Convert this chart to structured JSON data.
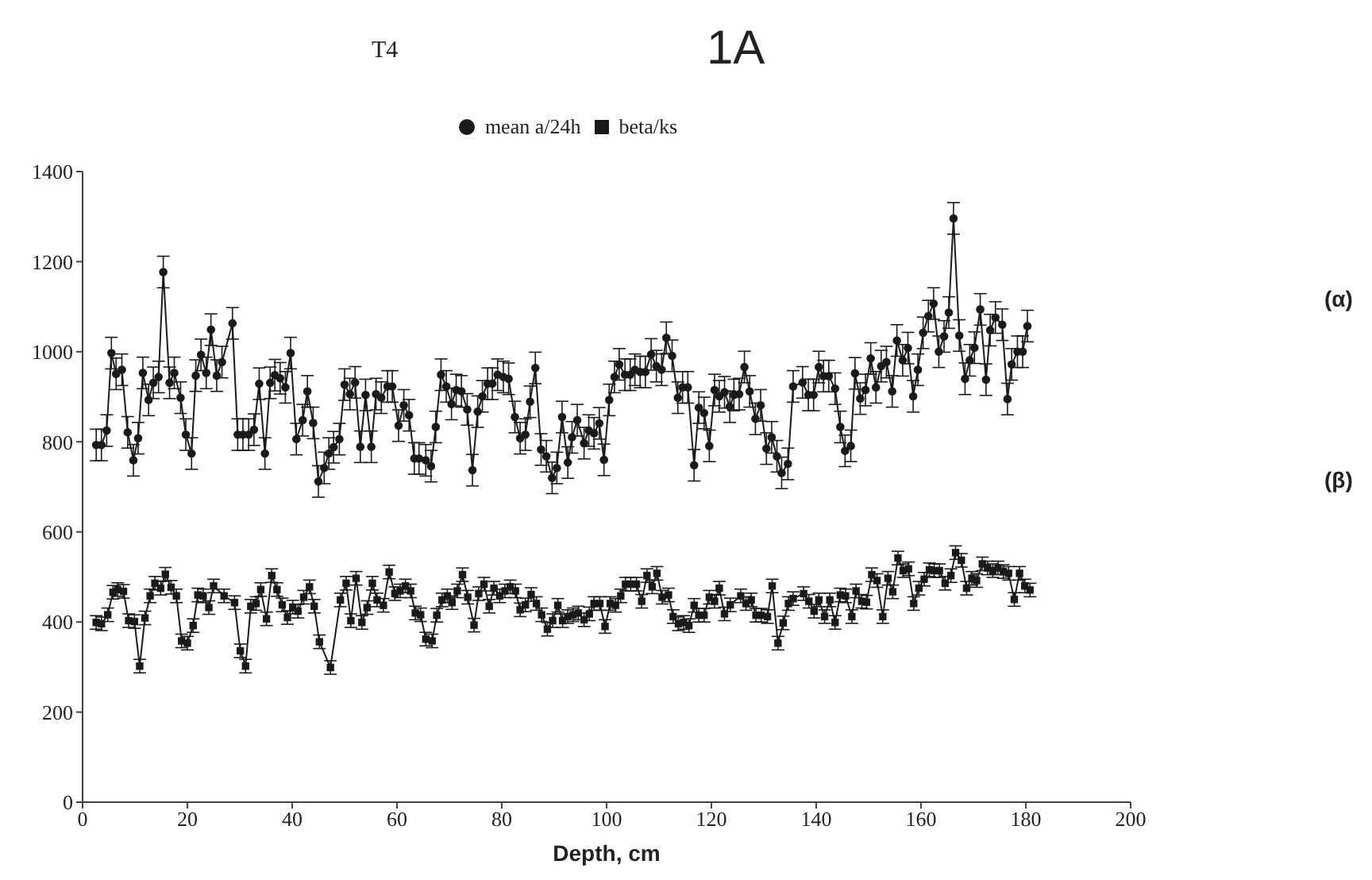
{
  "chart_data": {
    "type": "line",
    "title": "T4",
    "xlabel": "Depth, cm",
    "annotations": [
      "1A",
      "(α)",
      "(β)"
    ],
    "xlim": [
      0,
      200
    ],
    "xticks": [
      0,
      20,
      40,
      60,
      80,
      100,
      120,
      140,
      160,
      180,
      200
    ],
    "ylim": [
      0,
      1400
    ],
    "yticks": [
      0,
      200,
      400,
      600,
      800,
      1000,
      1200,
      1400
    ],
    "grid": false,
    "legend": "top",
    "line_style": "solid",
    "series": [
      {
        "name": "mean a/24h",
        "color": "#1a1a1a",
        "marker": "circle",
        "x": [
          2.6,
          3.6,
          4.6,
          5.5,
          6.4,
          7.5,
          8.6,
          9.7,
          10.6,
          11.5,
          12.6,
          13.5,
          14.5,
          15.4,
          16.6,
          17.5,
          18.7,
          19.7,
          20.8,
          21.6,
          22.6,
          23.6,
          24.5,
          25.6,
          26.6,
          28.6,
          29.6,
          30.6,
          31.7,
          32.7,
          33.7,
          34.8,
          35.8,
          36.7,
          37.7,
          38.7,
          39.7,
          40.8,
          42.0,
          42.9,
          44.0,
          45.0,
          46.1,
          47.0,
          47.9,
          49.0,
          50.0,
          51.0,
          52.0,
          53.0,
          54.0,
          55.1,
          56.0,
          57.0,
          58.2,
          59.1,
          60.3,
          61.3,
          62.3,
          63.3,
          64.2,
          65.5,
          66.5,
          67.4,
          68.4,
          69.4,
          70.4,
          71.3,
          72.3,
          73.4,
          74.4,
          75.4,
          76.3,
          77.3,
          78.2,
          79.2,
          80.3,
          81.3,
          82.5,
          83.5,
          84.5,
          85.4,
          86.4,
          87.5,
          88.5,
          89.6,
          90.5,
          91.5,
          92.6,
          93.4,
          94.4,
          95.7,
          96.6,
          97.6,
          98.6,
          99.5,
          100.5,
          101.5,
          102.4,
          103.5,
          104.5,
          105.4,
          106.4,
          107.4,
          108.5,
          109.5,
          110.5,
          111.4,
          112.5,
          113.6,
          114.5,
          115.5,
          116.7,
          117.6,
          118.6,
          119.6,
          120.6,
          121.5,
          122.5,
          123.5,
          124.3,
          125.3,
          126.3,
          127.3,
          128.4,
          129.4,
          130.5,
          131.5,
          132.5,
          133.4,
          134.6,
          135.6,
          137.4,
          138.5,
          139.5,
          140.5,
          141.4,
          142.4,
          143.6,
          144.6,
          145.5,
          146.6,
          147.4,
          148.4,
          149.4,
          150.4,
          151.4,
          152.4,
          153.4,
          154.5,
          155.4,
          156.5,
          157.5,
          158.5,
          159.4,
          160.4,
          161.4,
          162.4,
          163.4,
          164.4,
          165.3,
          166.2,
          167.3,
          168.4,
          169.3,
          170.2,
          171.3,
          172.4,
          173.2,
          174.2,
          175.5,
          176.5,
          177.3,
          178.4,
          179.4,
          180.3
        ],
        "values": [
          793,
          793,
          825,
          997,
          951,
          960,
          821,
          759,
          808,
          953,
          893,
          931,
          944,
          1177,
          931,
          953,
          898,
          816,
          774,
          947,
          993,
          953,
          1049,
          947,
          977,
          1063,
          816,
          816,
          816,
          827,
          929,
          774,
          931,
          948,
          941,
          921,
          997,
          806,
          848,
          912,
          842,
          712,
          742,
          774,
          788,
          806,
          927,
          906,
          932,
          789,
          904,
          789,
          906,
          898,
          923,
          923,
          836,
          881,
          859,
          763,
          763,
          759,
          746,
          833,
          949,
          923,
          884,
          915,
          912,
          872,
          737,
          867,
          901,
          929,
          929,
          949,
          944,
          940,
          855,
          808,
          816,
          889,
          964,
          783,
          768,
          720,
          742,
          855,
          754,
          810,
          848,
          797,
          825,
          819,
          841,
          760,
          893,
          944,
          972,
          949,
          949,
          960,
          955,
          955,
          994,
          968,
          960,
          1031,
          991,
          898,
          921,
          921,
          748,
          876,
          864,
          791,
          915,
          901,
          910,
          878,
          904,
          906,
          966,
          912,
          851,
          881,
          785,
          810,
          768,
          731,
          751,
          923,
          932,
          904,
          904,
          966,
          946,
          946,
          918,
          833,
          780,
          791,
          952,
          896,
          915,
          985,
          921,
          968,
          977,
          912,
          1025,
          981,
          1008,
          901,
          960,
          1042,
          1079,
          1107,
          1000,
          1034,
          1087,
          1296,
          1036,
          940,
          981,
          1009,
          1094,
          938,
          1048,
          1076,
          1060,
          895,
          972,
          1000,
          1000,
          1057
        ],
        "errors": [
          35,
          35,
          35,
          35,
          35,
          35,
          35,
          35,
          35,
          35,
          35,
          35,
          35,
          35,
          35,
          35,
          35,
          35,
          35,
          35,
          35,
          35,
          35,
          35,
          35,
          35,
          35,
          35,
          35,
          35,
          35,
          35,
          35,
          35,
          35,
          35,
          35,
          35,
          35,
          35,
          35,
          35,
          35,
          35,
          35,
          35,
          35,
          35,
          35,
          35,
          35,
          35,
          35,
          35,
          35,
          35,
          35,
          35,
          35,
          35,
          35,
          35,
          35,
          35,
          35,
          35,
          35,
          35,
          35,
          35,
          35,
          35,
          35,
          35,
          35,
          35,
          35,
          35,
          35,
          35,
          35,
          35,
          35,
          35,
          35,
          35,
          35,
          35,
          35,
          35,
          35,
          35,
          35,
          35,
          35,
          35,
          35,
          35,
          35,
          35,
          35,
          35,
          35,
          35,
          35,
          35,
          35,
          35,
          35,
          35,
          35,
          35,
          35,
          35,
          35,
          35,
          35,
          35,
          35,
          35,
          35,
          35,
          35,
          35,
          35,
          35,
          35,
          35,
          35,
          35,
          35,
          35,
          35,
          35,
          35,
          35,
          35,
          35,
          35,
          35,
          35,
          35,
          35,
          35,
          35,
          35,
          35,
          35,
          35,
          35,
          35,
          35,
          35,
          35,
          35,
          35,
          35,
          35,
          35,
          35,
          35,
          35,
          35,
          35,
          35,
          35,
          35,
          35,
          35,
          35,
          35,
          35,
          35,
          35,
          35,
          35
        ]
      },
      {
        "name": "beta/ks",
        "color": "#1a1a1a",
        "marker": "square",
        "x": [
          2.6,
          3.6,
          4.8,
          5.8,
          6.7,
          7.8,
          8.8,
          9.9,
          10.9,
          11.9,
          12.9,
          13.8,
          14.9,
          15.8,
          16.9,
          17.9,
          18.9,
          20.0,
          21.1,
          22.0,
          23.0,
          24.1,
          25.0,
          27.0,
          29.0,
          30.1,
          31.1,
          32.1,
          33.1,
          34.0,
          35.1,
          36.1,
          37.1,
          38.1,
          39.1,
          40.1,
          41.1,
          42.2,
          43.3,
          44.2,
          45.2,
          47.3,
          49.2,
          50.3,
          51.2,
          52.2,
          53.3,
          54.3,
          55.3,
          56.2,
          57.4,
          58.5,
          59.6,
          60.6,
          61.6,
          62.6,
          63.5,
          64.5,
          65.5,
          66.7,
          67.6,
          68.6,
          69.6,
          70.5,
          71.5,
          72.5,
          73.5,
          74.7,
          75.6,
          76.6,
          77.6,
          78.5,
          79.6,
          80.6,
          81.6,
          82.6,
          83.5,
          84.5,
          85.6,
          86.6,
          87.6,
          88.7,
          89.7,
          90.7,
          91.6,
          92.6,
          93.6,
          94.6,
          95.7,
          96.7,
          97.6,
          98.7,
          99.7,
          100.7,
          101.7,
          102.7,
          103.6,
          104.6,
          105.7,
          106.7,
          107.7,
          108.7,
          109.6,
          110.6,
          111.8,
          112.7,
          113.7,
          114.7,
          115.7,
          116.7,
          117.6,
          118.6,
          119.6,
          120.6,
          121.5,
          122.5,
          123.6,
          125.6,
          126.6,
          127.6,
          128.5,
          129.5,
          130.7,
          131.6,
          132.7,
          133.7,
          134.7,
          135.6,
          137.6,
          138.6,
          139.6,
          140.5,
          141.6,
          142.6,
          143.6,
          144.6,
          145.6,
          146.8,
          147.6,
          148.7,
          149.6,
          150.6,
          151.6,
          152.7,
          153.7,
          154.6,
          155.6,
          156.6,
          157.6,
          158.6,
          159.6,
          160.6,
          161.6,
          162.5,
          163.5,
          164.6,
          165.7,
          166.6,
          167.7,
          168.7,
          169.7,
          170.6,
          171.7,
          172.7,
          173.7,
          174.7,
          175.7,
          176.7,
          177.8,
          178.8,
          179.8,
          180.8
        ],
        "values": [
          399,
          396,
          416,
          466,
          472,
          468,
          403,
          401,
          302,
          409,
          458,
          486,
          475,
          506,
          477,
          458,
          358,
          353,
          392,
          460,
          458,
          432,
          480,
          458,
          443,
          336,
          302,
          435,
          441,
          472,
          407,
          503,
          472,
          438,
          410,
          433,
          424,
          455,
          478,
          435,
          356,
          299,
          449,
          486,
          403,
          497,
          399,
          432,
          486,
          449,
          437,
          511,
          463,
          469,
          480,
          469,
          420,
          416,
          362,
          358,
          415,
          449,
          458,
          443,
          469,
          505,
          455,
          393,
          463,
          484,
          435,
          475,
          458,
          469,
          478,
          469,
          427,
          438,
          461,
          441,
          416,
          384,
          403,
          437,
          403,
          412,
          416,
          420,
          405,
          418,
          441,
          441,
          390,
          441,
          437,
          458,
          484,
          484,
          484,
          446,
          503,
          478,
          508,
          455,
          460,
          412,
          396,
          399,
          392,
          437,
          415,
          415,
          455,
          446,
          475,
          418,
          438,
          458,
          441,
          449,
          415,
          415,
          412,
          480,
          353,
          398,
          441,
          452,
          463,
          446,
          424,
          449,
          412,
          449,
          399,
          460,
          458,
          412,
          469,
          446,
          444,
          505,
          492,
          412,
          497,
          467,
          542,
          514,
          518,
          441,
          475,
          495,
          516,
          514,
          514,
          486,
          503,
          554,
          537,
          475,
          497,
          492,
          529,
          520,
          514,
          520,
          512,
          508,
          450,
          508,
          480,
          471
        ],
        "errors": [
          15,
          15,
          15,
          15,
          15,
          15,
          15,
          15,
          15,
          15,
          15,
          15,
          15,
          15,
          15,
          15,
          15,
          15,
          15,
          15,
          15,
          15,
          15,
          15,
          15,
          15,
          15,
          15,
          15,
          15,
          15,
          15,
          15,
          15,
          15,
          15,
          15,
          15,
          15,
          15,
          15,
          15,
          15,
          15,
          15,
          15,
          15,
          15,
          15,
          15,
          15,
          15,
          15,
          15,
          15,
          15,
          15,
          15,
          15,
          15,
          15,
          15,
          15,
          15,
          15,
          15,
          15,
          15,
          15,
          15,
          15,
          15,
          15,
          15,
          15,
          15,
          15,
          15,
          15,
          15,
          15,
          15,
          15,
          15,
          15,
          15,
          15,
          15,
          15,
          15,
          15,
          15,
          15,
          15,
          15,
          15,
          15,
          15,
          15,
          15,
          15,
          15,
          15,
          15,
          15,
          15,
          15,
          15,
          15,
          15,
          15,
          15,
          15,
          15,
          15,
          15,
          15,
          15,
          15,
          15,
          15,
          15,
          15,
          15,
          15,
          15,
          15,
          15,
          15,
          15,
          15,
          15,
          15,
          15,
          15,
          15,
          15,
          15,
          15,
          15,
          15,
          15,
          15,
          15,
          15,
          15,
          15,
          15,
          15,
          15,
          15,
          15,
          15,
          15,
          15,
          15,
          15,
          15,
          15,
          15,
          15,
          15,
          15,
          15,
          15,
          15,
          15,
          15,
          15,
          15,
          15,
          15
        ]
      }
    ]
  }
}
